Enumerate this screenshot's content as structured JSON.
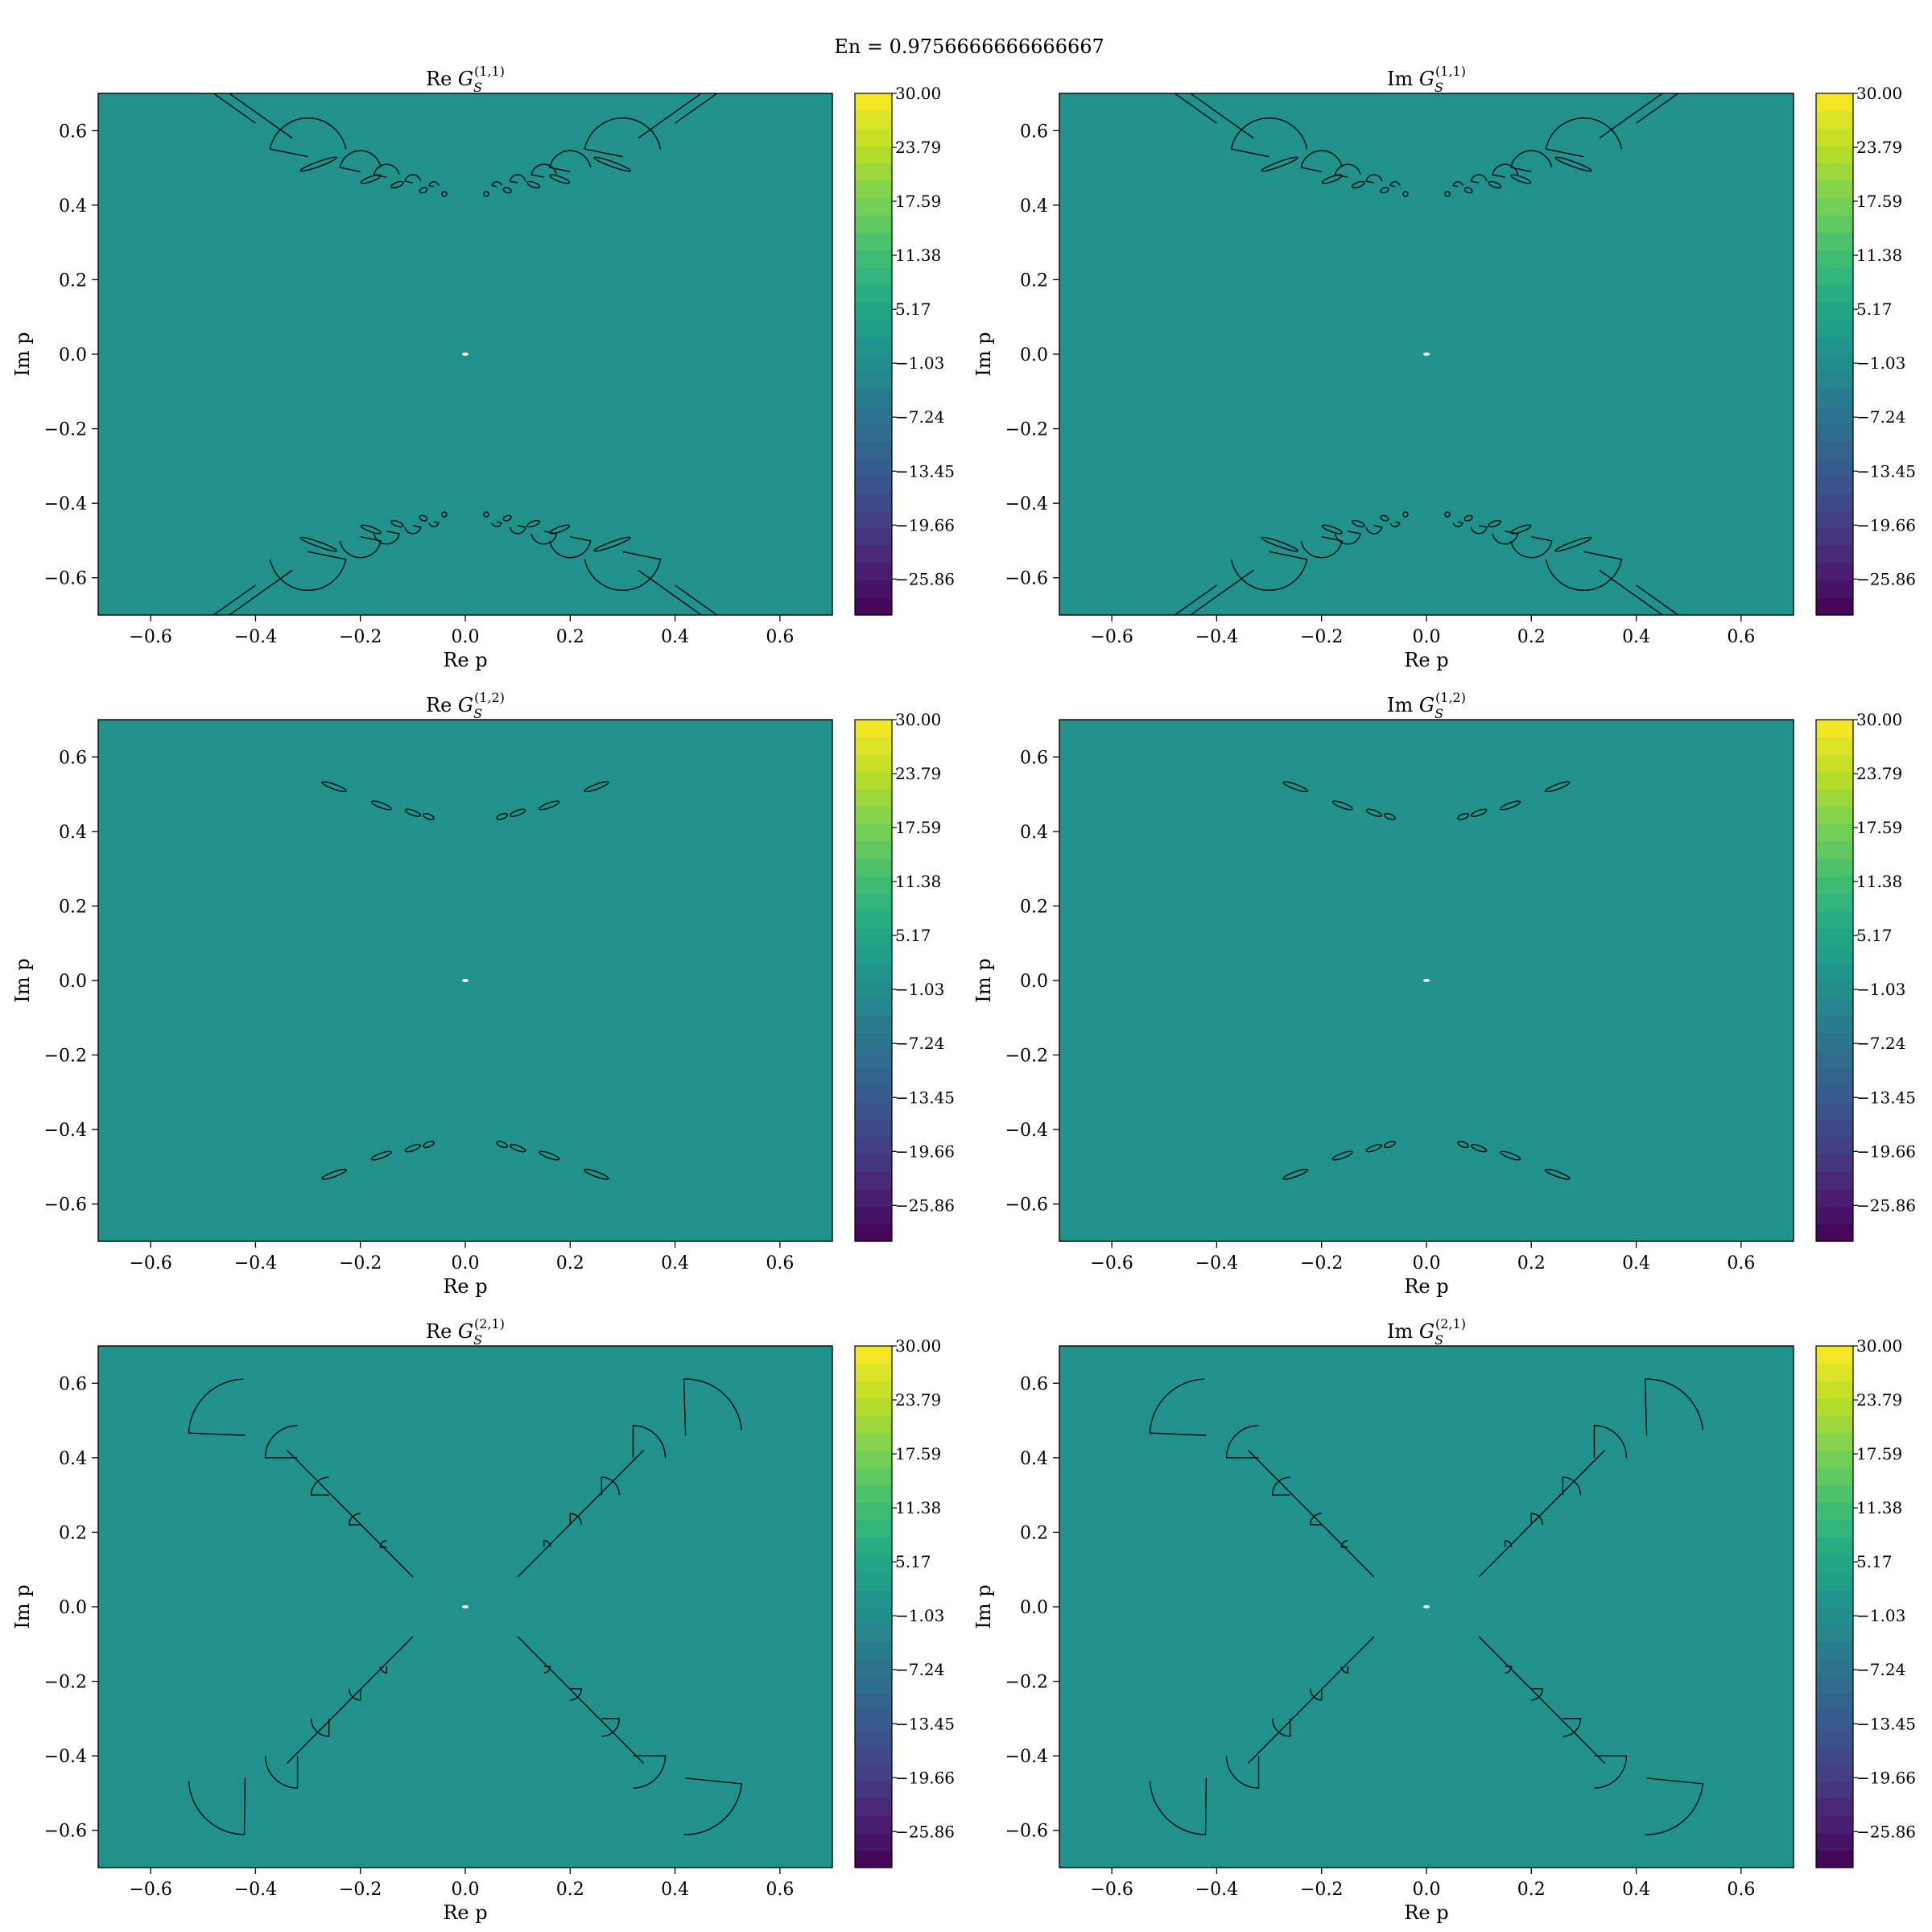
{
  "figure": {
    "suptitle": "En = 0.9756666666666667"
  },
  "colors": {
    "background_fill": "#21918c",
    "contour_line": "#000000",
    "origin_marker": "#ffffff",
    "colormap": [
      "#440154",
      "#482475",
      "#414487",
      "#355f8d",
      "#2a788e",
      "#21918c",
      "#22a884",
      "#44bf70",
      "#7ad151",
      "#bddf26",
      "#fde725"
    ]
  },
  "chart_data": [
    {
      "type": "heatmap",
      "title": "Re G_S^(1,1)",
      "title_parts": {
        "prefix": "Re",
        "symbol": "G",
        "subscript": "S",
        "superscript": "(1,1)"
      },
      "xlabel": "Re p",
      "ylabel": "Im p",
      "xlim": [
        -0.7,
        0.7
      ],
      "ylim": [
        -0.7,
        0.7
      ],
      "xticks": [
        "−0.6",
        "−0.4",
        "−0.2",
        "0.0",
        "0.2",
        "0.4",
        "0.6"
      ],
      "yticks": [
        "0.6",
        "0.4",
        "0.2",
        "0.0",
        "−0.2",
        "−0.4",
        "−0.6"
      ],
      "colorbar": {
        "range": [
          -30,
          30
        ],
        "ticks": [
          "30.00",
          "23.79",
          "17.59",
          "11.38",
          "5.17",
          "−1.03",
          "−7.24",
          "−13.45",
          "−19.66",
          "−25.86"
        ]
      },
      "field_level": -1.03,
      "pattern": "horizontal-arcs",
      "grid": false
    },
    {
      "type": "heatmap",
      "title": "Im G_S^(1,1)",
      "title_parts": {
        "prefix": "Im",
        "symbol": "G",
        "subscript": "S",
        "superscript": "(1,1)"
      },
      "xlabel": "Re p",
      "ylabel": "Im p",
      "xlim": [
        -0.7,
        0.7
      ],
      "ylim": [
        -0.7,
        0.7
      ],
      "xticks": [
        "−0.6",
        "−0.4",
        "−0.2",
        "0.0",
        "0.2",
        "0.4",
        "0.6"
      ],
      "yticks": [
        "0.6",
        "0.4",
        "0.2",
        "0.0",
        "−0.2",
        "−0.4",
        "−0.6"
      ],
      "colorbar": {
        "range": [
          -30,
          30
        ],
        "ticks": [
          "30.00",
          "23.79",
          "17.59",
          "11.38",
          "5.17",
          "−1.03",
          "−7.24",
          "−13.45",
          "−19.66",
          "−25.86"
        ]
      },
      "field_level": -1.03,
      "pattern": "horizontal-arcs",
      "grid": false
    },
    {
      "type": "heatmap",
      "title": "Re G_S^(1,2)",
      "title_parts": {
        "prefix": "Re",
        "symbol": "G",
        "subscript": "S",
        "superscript": "(1,2)"
      },
      "xlabel": "Re p",
      "ylabel": "Im p",
      "xlim": [
        -0.7,
        0.7
      ],
      "ylim": [
        -0.7,
        0.7
      ],
      "xticks": [
        "−0.6",
        "−0.4",
        "−0.2",
        "0.0",
        "0.2",
        "0.4",
        "0.6"
      ],
      "yticks": [
        "0.6",
        "0.4",
        "0.2",
        "0.0",
        "−0.2",
        "−0.4",
        "−0.6"
      ],
      "colorbar": {
        "range": [
          -30,
          30
        ],
        "ticks": [
          "30.00",
          "23.79",
          "17.59",
          "11.38",
          "5.17",
          "−1.03",
          "−7.24",
          "−13.45",
          "−19.66",
          "−25.86"
        ]
      },
      "field_level": -1.03,
      "pattern": "small-horizontal",
      "grid": false
    },
    {
      "type": "heatmap",
      "title": "Im G_S^(1,2)",
      "title_parts": {
        "prefix": "Im",
        "symbol": "G",
        "subscript": "S",
        "superscript": "(1,2)"
      },
      "xlabel": "Re p",
      "ylabel": "Im p",
      "xlim": [
        -0.7,
        0.7
      ],
      "ylim": [
        -0.7,
        0.7
      ],
      "xticks": [
        "−0.6",
        "−0.4",
        "−0.2",
        "0.0",
        "0.2",
        "0.4",
        "0.6"
      ],
      "yticks": [
        "0.6",
        "0.4",
        "0.2",
        "0.0",
        "−0.2",
        "−0.4",
        "−0.6"
      ],
      "colorbar": {
        "range": [
          -30,
          30
        ],
        "ticks": [
          "30.00",
          "23.79",
          "17.59",
          "11.38",
          "5.17",
          "−1.03",
          "−7.24",
          "−13.45",
          "−19.66",
          "−25.86"
        ]
      },
      "field_level": -1.03,
      "pattern": "small-horizontal",
      "grid": false
    },
    {
      "type": "heatmap",
      "title": "Re G_S^(2,1)",
      "title_parts": {
        "prefix": "Re",
        "symbol": "G",
        "subscript": "S",
        "superscript": "(2,1)"
      },
      "xlabel": "Re p",
      "ylabel": "Im p",
      "xlim": [
        -0.7,
        0.7
      ],
      "ylim": [
        -0.7,
        0.7
      ],
      "xticks": [
        "−0.6",
        "−0.4",
        "−0.2",
        "0.0",
        "0.2",
        "0.4",
        "0.6"
      ],
      "yticks": [
        "0.6",
        "0.4",
        "0.2",
        "0.0",
        "−0.2",
        "−0.4",
        "−0.6"
      ],
      "colorbar": {
        "range": [
          -30,
          30
        ],
        "ticks": [
          "30.00",
          "23.79",
          "17.59",
          "11.38",
          "5.17",
          "−1.03",
          "−7.24",
          "−13.45",
          "−19.66",
          "−25.86"
        ]
      },
      "field_level": -1.03,
      "pattern": "x-shape",
      "grid": false
    },
    {
      "type": "heatmap",
      "title": "Im G_S^(2,1)",
      "title_parts": {
        "prefix": "Im",
        "symbol": "G",
        "subscript": "S",
        "superscript": "(2,1)"
      },
      "xlabel": "Re p",
      "ylabel": "Im p",
      "xlim": [
        -0.7,
        0.7
      ],
      "ylim": [
        -0.7,
        0.7
      ],
      "xticks": [
        "−0.6",
        "−0.4",
        "−0.2",
        "0.0",
        "0.2",
        "0.4",
        "0.6"
      ],
      "yticks": [
        "0.6",
        "0.4",
        "0.2",
        "0.0",
        "−0.2",
        "−0.4",
        "−0.6"
      ],
      "colorbar": {
        "range": [
          -30,
          30
        ],
        "ticks": [
          "30.00",
          "23.79",
          "17.59",
          "11.38",
          "5.17",
          "−1.03",
          "−7.24",
          "−13.45",
          "−19.66",
          "−25.86"
        ]
      },
      "field_level": -1.03,
      "pattern": "x-shape",
      "grid": false
    }
  ]
}
